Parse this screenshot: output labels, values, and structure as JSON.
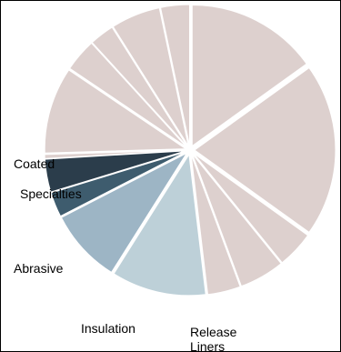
{
  "chart_data": {
    "type": "pie",
    "title": "",
    "exploded": true,
    "legend": "none",
    "slices": [
      {
        "value": 16.0,
        "color": "#ddd0ce",
        "label": ""
      },
      {
        "value": 21.0,
        "color": "#ddd0ce",
        "label": ""
      },
      {
        "value": 4.5,
        "color": "#ddd0ce",
        "label": ""
      },
      {
        "value": 5.5,
        "color": "#ddd0ce",
        "label": ""
      },
      {
        "value": 4.0,
        "color": "#ddd0ce",
        "label": ""
      },
      {
        "value": 11.5,
        "color": "#bdd0d8",
        "label": "Release Liners"
      },
      {
        "value": 9.0,
        "color": "#9db5c5",
        "label": "Insulation"
      },
      {
        "value": 3.0,
        "color": "#3e5c6e",
        "label": "Abrasive"
      },
      {
        "value": 4.0,
        "color": "#2b3d4b",
        "label": "Specialties"
      },
      {
        "value": 0.5,
        "color": "#ddd0ce",
        "label": "Coated"
      },
      {
        "value": 10.5,
        "color": "#ddd0ce",
        "label": ""
      },
      {
        "value": 4.0,
        "color": "#ddd0ce",
        "label": ""
      },
      {
        "value": 3.0,
        "color": "#ddd0ce",
        "label": ""
      },
      {
        "value": 6.0,
        "color": "#ddd0ce",
        "label": ""
      },
      {
        "value": 3.5,
        "color": "#ddd0ce",
        "label": ""
      }
    ]
  },
  "labels": {
    "coated": "Coated",
    "specialties": "Specialties",
    "abrasive": "Abrasive",
    "insulation": "Insulation",
    "release_liners": "Release Liners"
  }
}
